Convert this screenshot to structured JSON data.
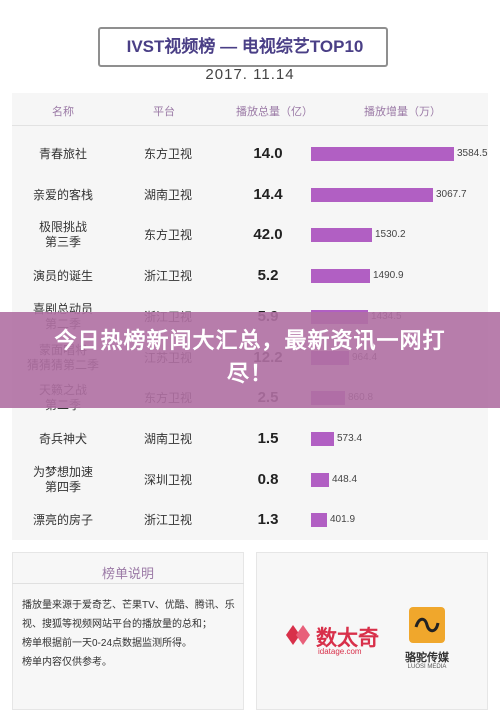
{
  "chart_data": {
    "type": "table",
    "title": "IVST视频榜 — 电视综艺TOP10",
    "date": "2017. 11.14",
    "columns": [
      "名称",
      "平台",
      "播放总量（亿）",
      "播放增量（万）"
    ],
    "rows": [
      {
        "name": "青春旅社",
        "platform": "东方卫视",
        "total": "14.0",
        "increase": 3584.5
      },
      {
        "name": "亲爱的客栈",
        "platform": "湖南卫视",
        "total": "14.4",
        "increase": 3067.7
      },
      {
        "name": "极限挑战\n第三季",
        "platform": "东方卫视",
        "total": "42.0",
        "increase": 1530.2
      },
      {
        "name": "演员的诞生",
        "platform": "浙江卫视",
        "total": "5.2",
        "increase": 1490.9
      },
      {
        "name": "喜剧总动员\n第二季",
        "platform": "浙江卫视",
        "total": "5.9",
        "increase": 1434.5
      },
      {
        "name": "蒙面唱将\n猜猜猜第二季",
        "platform": "江苏卫视",
        "total": "12.2",
        "increase": 964.4
      },
      {
        "name": "天籁之战\n第二季",
        "platform": "东方卫视",
        "total": "2.5",
        "increase": 860.8
      },
      {
        "name": "奇兵神犬",
        "platform": "湖南卫视",
        "total": "1.5",
        "increase": 573.4
      },
      {
        "name": "为梦想加速\n第四季",
        "platform": "深圳卫视",
        "total": "0.8",
        "increase": 448.4
      },
      {
        "name": "漂亮的房子",
        "platform": "浙江卫视",
        "total": "1.3",
        "increase": 401.9
      }
    ],
    "x_max": 3584.5,
    "bar_color": "#b15fc3"
  },
  "banner": {
    "text": "今日热榜新闻大汇总，最新资讯一网打尽！"
  },
  "notes": {
    "title": "榜单说明",
    "lines": [
      "播放量来源于爱奇艺、芒果TV、优酷、腾讯、乐视、搜狐等视频网站平台的播放量的总和；",
      "榜单根据前一天0-24点数据监测所得。",
      "榜单内容仅供参考。"
    ]
  },
  "logos": {
    "logo1_name": "数太奇",
    "logo1_sub": "idatage.com",
    "logo2_name": "骆驼传媒",
    "logo2_sub": "LUOSI MEDIA"
  }
}
